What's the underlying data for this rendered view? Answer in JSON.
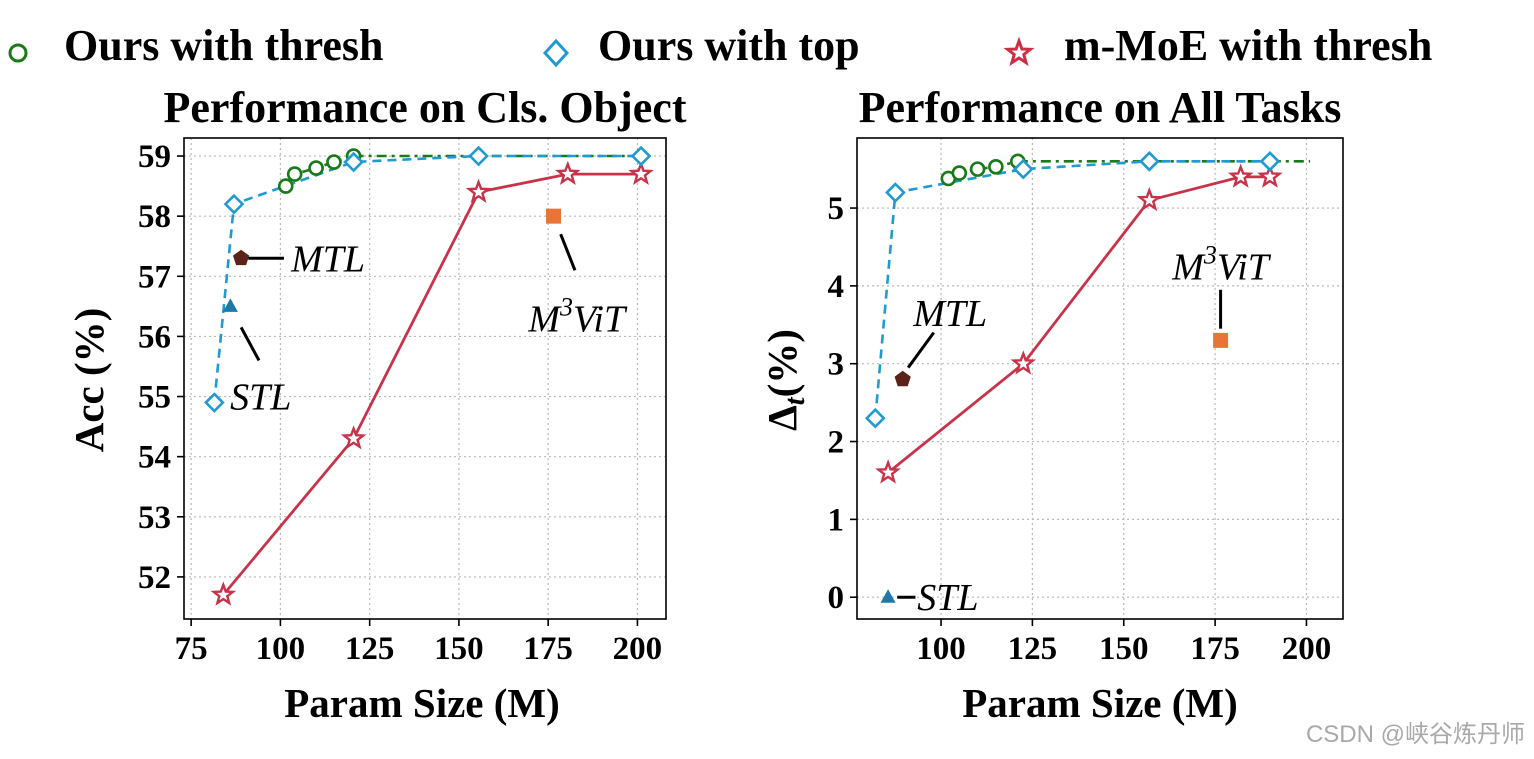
{
  "legend": [
    {
      "label": "Ours with thresh",
      "marker": "circle-open",
      "color": "#1a7a1a"
    },
    {
      "label": "Ours with top",
      "marker": "diamond-open",
      "color": "#1f9bd1"
    },
    {
      "label": "m-MoE with thresh",
      "marker": "star-open",
      "color": "#cc2f45"
    }
  ],
  "watermark": "CSDN @峡谷炼丹师",
  "colors": {
    "thresh": "#1a7a1a",
    "top": "#1f9bd1",
    "mmoe": "#c9334a",
    "mtl": "#5a2218",
    "stl": "#1f78a8",
    "m3vit": "#e8743a"
  },
  "chart_data": [
    {
      "type": "line",
      "title": "Performance on Cls. Object",
      "xlabel": "Param Size (M)",
      "ylabel": "Acc (%)",
      "xlim": [
        73,
        208
      ],
      "ylim": [
        51.3,
        59.3
      ],
      "xticks": [
        75,
        100,
        125,
        150,
        175,
        200
      ],
      "yticks": [
        52,
        53,
        54,
        55,
        56,
        57,
        58,
        59
      ],
      "grid": true,
      "series": [
        {
          "name": "Ours with thresh",
          "key": "thresh",
          "x": [
            101.5,
            104,
            110,
            115,
            120.5
          ],
          "y": [
            58.5,
            58.7,
            58.8,
            58.9,
            59.0
          ]
        },
        {
          "name": "Ours with top",
          "key": "top",
          "x": [
            81.5,
            87,
            120.5,
            155.5,
            201
          ],
          "y": [
            54.9,
            58.2,
            58.9,
            59.0,
            59.0
          ]
        },
        {
          "name": "Ours with thresh (tail)",
          "key": "thresh_tail",
          "x": [
            120.5,
            201
          ],
          "y": [
            59.0,
            59.0
          ]
        },
        {
          "name": "m-MoE with thresh",
          "key": "mmoe",
          "x": [
            84,
            120.5,
            155.5,
            180.5,
            201
          ],
          "y": [
            51.7,
            54.3,
            58.4,
            58.7,
            58.7
          ]
        }
      ],
      "points": [
        {
          "name": "MTL",
          "x": 89,
          "y": 57.3,
          "marker": "pentagon",
          "color_key": "mtl"
        },
        {
          "name": "STL",
          "x": 86,
          "y": 56.5,
          "marker": "triangle",
          "color_key": "stl"
        },
        {
          "name": "M3ViT",
          "x": 176.5,
          "y": 58.0,
          "marker": "square",
          "color_key": "m3vit"
        }
      ],
      "annotations": [
        {
          "text": "MTL",
          "point": "MTL",
          "leader": [
            [
              91,
              57.3
            ],
            [
              101,
              57.3
            ]
          ],
          "text_at": [
            103,
            57.3
          ],
          "anchor": "start"
        },
        {
          "text": "STL",
          "point": "STL",
          "leader": [
            [
              89,
              56.15
            ],
            [
              94,
              55.6
            ]
          ],
          "text_at": [
            94.5,
            55.0
          ],
          "anchor": "middle"
        },
        {
          "text": "M³ViT",
          "base": "M",
          "sup": "3",
          "rest": "ViT",
          "point": "M3ViT",
          "leader": [
            [
              178.5,
              57.7
            ],
            [
              182.5,
              57.1
            ]
          ],
          "text_at": [
            183,
            56.3
          ],
          "anchor": "middle"
        }
      ]
    },
    {
      "type": "line",
      "title": "Performance on All Tasks",
      "xlabel": "Param Size (M)",
      "ylabel": "Δt(%)",
      "ylabel_base": "Δ",
      "ylabel_sub": "t",
      "ylabel_rest": "(%)",
      "xlim": [
        77,
        210
      ],
      "ylim": [
        -0.28,
        5.9
      ],
      "xticks": [
        100,
        125,
        150,
        175,
        200
      ],
      "yticks": [
        0,
        1,
        2,
        3,
        4,
        5
      ],
      "grid": true,
      "series": [
        {
          "name": "Ours with thresh",
          "key": "thresh",
          "x": [
            102,
            105,
            110,
            115,
            121
          ],
          "y": [
            5.38,
            5.45,
            5.5,
            5.53,
            5.6
          ]
        },
        {
          "name": "Ours with top",
          "key": "top",
          "x": [
            82,
            87.5,
            122.5,
            157,
            190
          ],
          "y": [
            2.3,
            5.2,
            5.5,
            5.6,
            5.6
          ]
        },
        {
          "name": "Ours with thresh (tail)",
          "key": "thresh_tail",
          "x": [
            121,
            201
          ],
          "y": [
            5.6,
            5.6
          ]
        },
        {
          "name": "m-MoE with thresh",
          "key": "mmoe",
          "x": [
            85.5,
            122.5,
            157,
            182,
            190
          ],
          "y": [
            1.6,
            3.0,
            5.1,
            5.4,
            5.4
          ]
        }
      ],
      "points": [
        {
          "name": "MTL",
          "x": 89.5,
          "y": 2.8,
          "marker": "pentagon",
          "color_key": "mtl"
        },
        {
          "name": "STL",
          "x": 85.5,
          "y": 0.0,
          "marker": "triangle",
          "color_key": "stl"
        },
        {
          "name": "M3ViT",
          "x": 176.5,
          "y": 3.3,
          "marker": "square",
          "color_key": "m3vit"
        }
      ],
      "annotations": [
        {
          "text": "MTL",
          "point": "MTL",
          "leader": [
            [
              91,
              2.95
            ],
            [
              98,
              3.4
            ]
          ],
          "text_at": [
            102.5,
            3.65
          ],
          "anchor": "middle"
        },
        {
          "text": "STL",
          "point": "STL",
          "leader": [
            [
              88,
              0.0
            ],
            [
              93,
              0.0
            ]
          ],
          "text_at": [
            93.5,
            0.0
          ],
          "anchor": "start"
        },
        {
          "text": "M³ViT",
          "base": "M",
          "sup": "3",
          "rest": "ViT",
          "point": "M3ViT",
          "leader": [
            [
              176.5,
              3.45
            ],
            [
              176.5,
              3.95
            ]
          ],
          "text_at": [
            176.5,
            4.25
          ],
          "anchor": "middle"
        }
      ]
    }
  ]
}
